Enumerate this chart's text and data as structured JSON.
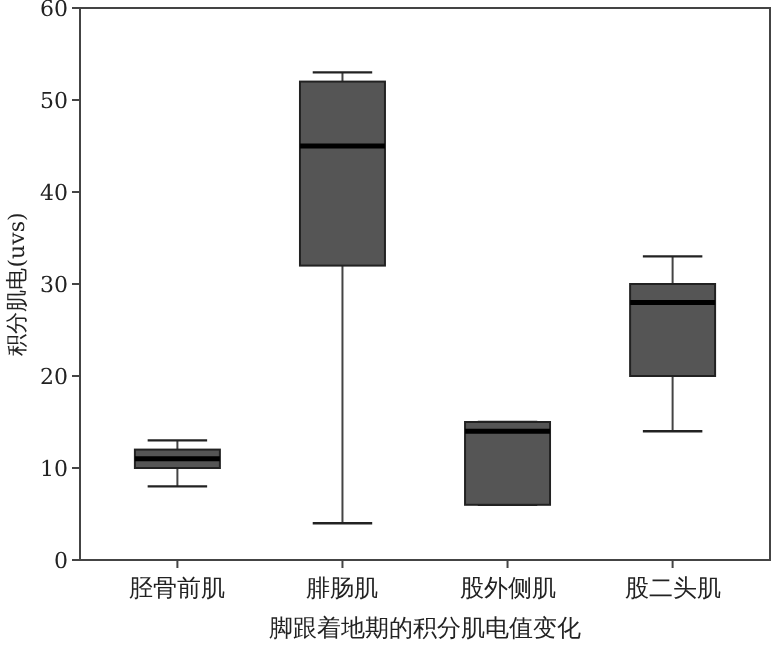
{
  "chart_data": {
    "type": "box",
    "xlabel": "脚跟着地期的积分肌电值变化",
    "ylabel": "积分肌电(uvs)",
    "categories": [
      "胫骨前肌",
      "腓肠肌",
      "股外侧肌",
      "股二头肌"
    ],
    "color": "#555555",
    "ylim": [
      0,
      60
    ],
    "yticks": [
      0,
      10,
      20,
      30,
      40,
      50,
      60
    ],
    "grid": false,
    "boxes": [
      {
        "low": 8,
        "q1": 10,
        "median": 11,
        "q3": 12,
        "high": 13
      },
      {
        "low": 4,
        "q1": 32,
        "median": 45,
        "q3": 52,
        "high": 53
      },
      {
        "low": 6,
        "q1": 6,
        "median": 14,
        "q3": 15,
        "high": 15
      },
      {
        "low": 14,
        "q1": 20,
        "median": 28,
        "q3": 30,
        "high": 33
      }
    ]
  }
}
